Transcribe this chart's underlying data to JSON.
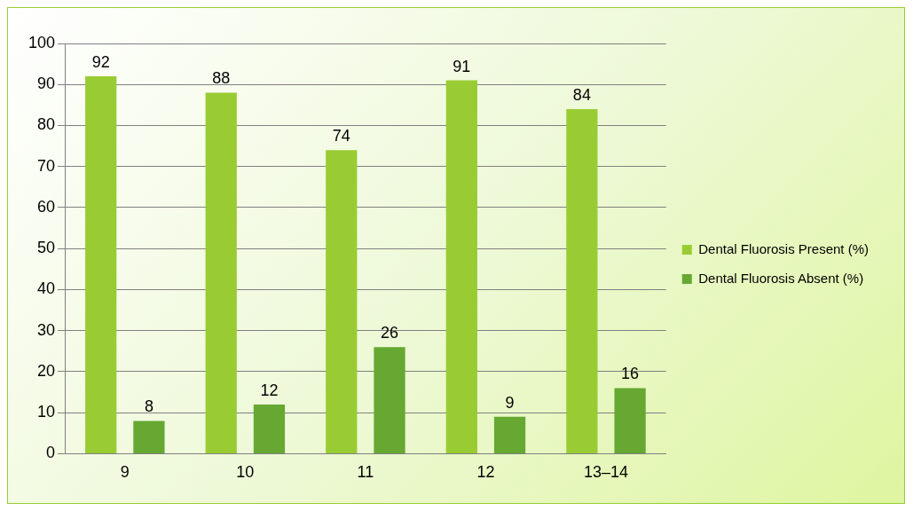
{
  "chart_data": {
    "type": "bar",
    "categories": [
      "9",
      "10",
      "11",
      "12",
      "13–14"
    ],
    "series": [
      {
        "name": "Dental Fluorosis Present (%)",
        "color": "#99cc33",
        "values": [
          92,
          88,
          74,
          91,
          84
        ]
      },
      {
        "name": "Dental Fluorosis Absent (%)",
        "color": "#66a832",
        "values": [
          8,
          12,
          26,
          9,
          16
        ]
      }
    ],
    "ylim": [
      0,
      100
    ],
    "yticks": [
      0,
      10,
      20,
      30,
      40,
      50,
      60,
      70,
      80,
      90,
      100
    ],
    "grid": "y",
    "legend": "right",
    "data_labels": true
  }
}
